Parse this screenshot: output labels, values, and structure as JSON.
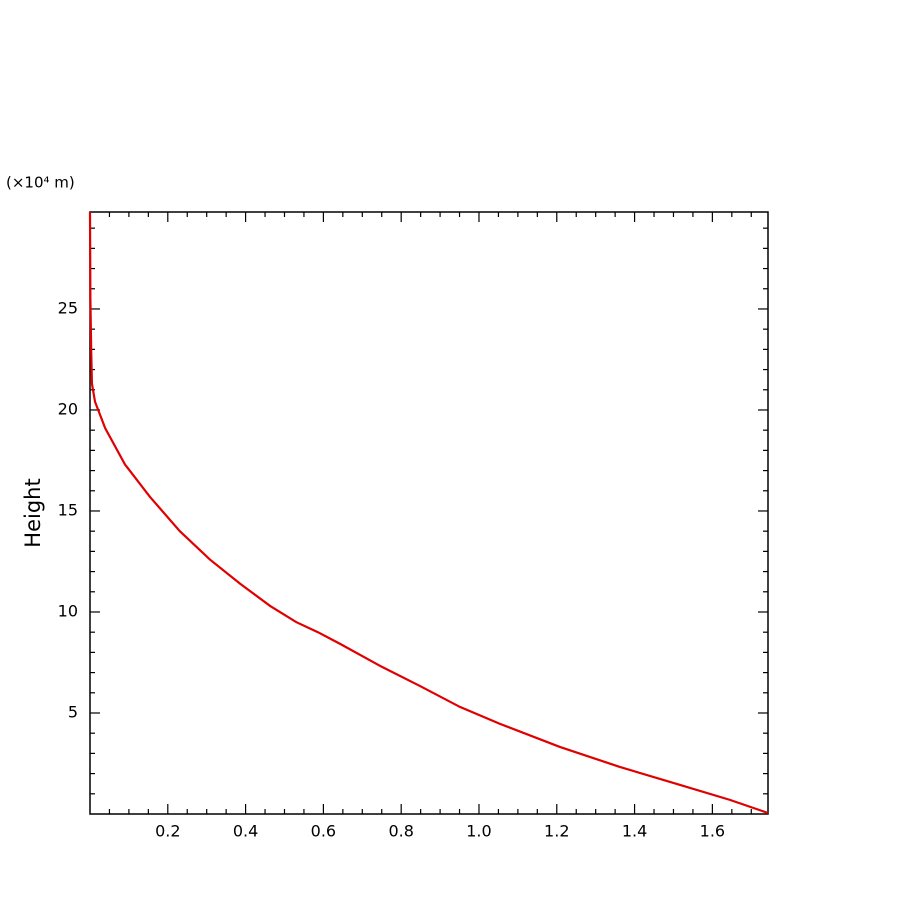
{
  "chart_data": {
    "type": "line",
    "y_label": "Height",
    "y_unit_label": "(×10⁴ m)",
    "x": [
      1.743,
      1.645,
      1.517,
      1.362,
      1.208,
      1.054,
      0.951,
      0.848,
      0.746,
      0.643,
      0.586,
      0.53,
      0.463,
      0.386,
      0.308,
      0.231,
      0.154,
      0.09,
      0.039,
      0.013,
      0.005,
      0.003,
      0.001,
      0
    ],
    "series": [
      {
        "color": "#e00000",
        "values": [
          0.05,
          0.7,
          1.44,
          2.33,
          3.32,
          4.46,
          5.3,
          6.34,
          7.33,
          8.42,
          9.0,
          9.5,
          10.3,
          11.4,
          12.6,
          14.0,
          15.7,
          17.3,
          19.1,
          20.4,
          21.3,
          23.0,
          25.5,
          29.8
        ]
      }
    ],
    "xlim": [
      0,
      1.743
    ],
    "ylim": [
      0,
      29.8
    ],
    "xticks": [
      0.2,
      0.4,
      0.6,
      0.8,
      {
        "value": 1,
        "label": "1.0"
      },
      1.2,
      1.4,
      1.6
    ],
    "yticks": [
      5,
      10,
      15,
      20,
      25
    ],
    "xminorticks": [
      0.05,
      0.1,
      0.15,
      0.25,
      0.3,
      0.35,
      0.45,
      0.5,
      0.55,
      0.65,
      0.7,
      0.75,
      0.85,
      0.9,
      0.95,
      1.05,
      1.1,
      1.15,
      1.25,
      1.3,
      1.35,
      1.45,
      1.5,
      1.55,
      1.65,
      1.7
    ],
    "yminorticks": [
      1,
      2,
      3,
      4,
      6,
      7,
      8,
      9,
      11,
      12,
      13,
      14,
      16,
      17,
      18,
      19,
      21,
      22,
      23,
      24,
      26,
      27,
      28,
      29
    ]
  }
}
